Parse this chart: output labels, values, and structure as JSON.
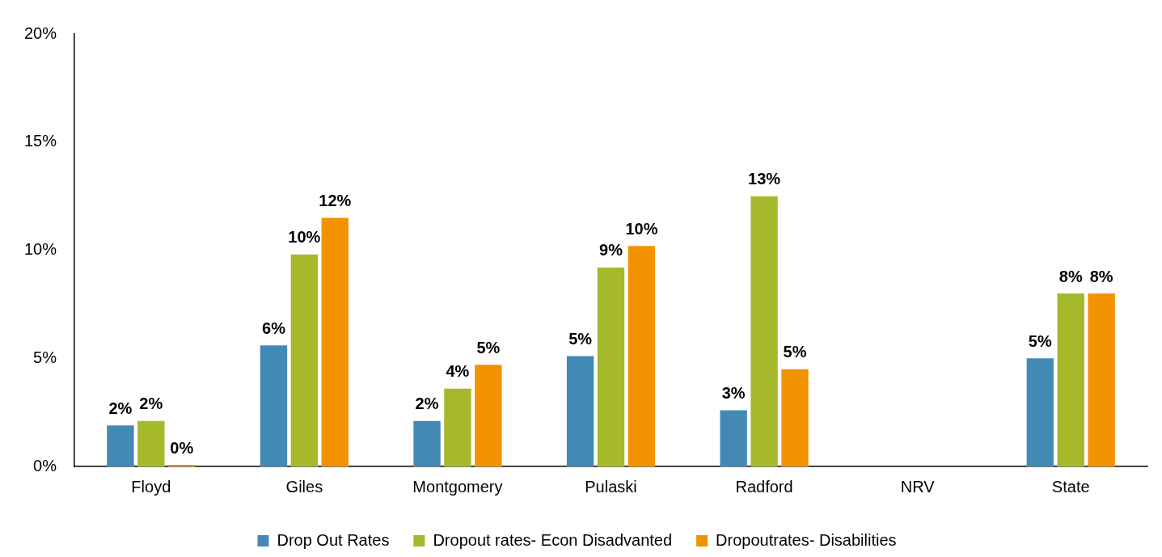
{
  "chart_data": {
    "type": "bar",
    "categories": [
      "Floyd",
      "Giles",
      "Montgomery",
      "Pulaski",
      "Radford",
      "NRV",
      "State"
    ],
    "series": [
      {
        "name": "Drop Out Rates",
        "color": "#4389b5",
        "values": [
          1.9,
          5.6,
          2.1,
          5.1,
          2.6,
          null,
          5.0
        ],
        "value_labels": [
          "2%",
          "6%",
          "2%",
          "5%",
          "3%",
          null,
          "5%"
        ]
      },
      {
        "name": "Dropout rates- Econ Disadvanted",
        "color": "#a5b92b",
        "values": [
          2.1,
          9.8,
          3.6,
          9.2,
          12.5,
          null,
          8.0
        ],
        "value_labels": [
          "2%",
          "10%",
          "4%",
          "9%",
          "13%",
          null,
          "8%"
        ]
      },
      {
        "name": "Dropoutrates- Disabilities",
        "color": "#f39200",
        "values": [
          0,
          11.5,
          4.7,
          10.2,
          4.5,
          null,
          8.0
        ],
        "value_labels": [
          "0%",
          "12%",
          "5%",
          "10%",
          "5%",
          null,
          "8%"
        ]
      }
    ],
    "ylim": [
      0,
      20
    ],
    "yticks": [
      {
        "value": 0,
        "label": "0%"
      },
      {
        "value": 5,
        "label": "5%"
      },
      {
        "value": 10,
        "label": "10%"
      },
      {
        "value": 15,
        "label": "15%"
      },
      {
        "value": 20,
        "label": "20%"
      }
    ],
    "grid": false,
    "legend": "bottom"
  }
}
